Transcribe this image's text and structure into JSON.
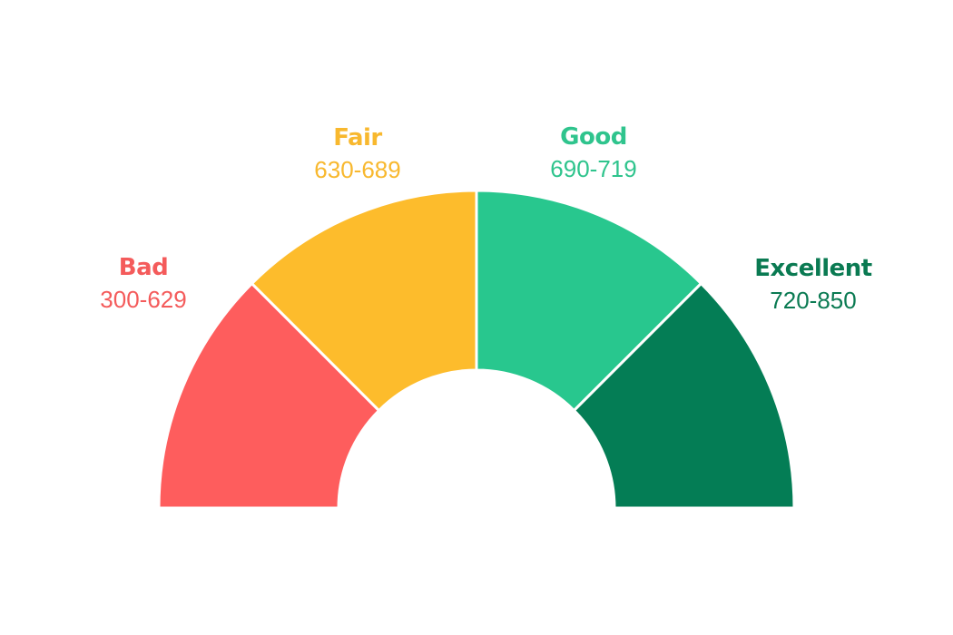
{
  "gauge": {
    "segments": [
      {
        "key": "bad",
        "title": "Bad",
        "range": "300-629",
        "color": "#FE5D5D"
      },
      {
        "key": "fair",
        "title": "Fair",
        "range": "630-689",
        "color": "#FDBC2C"
      },
      {
        "key": "good",
        "title": "Good",
        "range": "690-719",
        "color": "#28C78E"
      },
      {
        "key": "excellent",
        "title": "Excellent",
        "range": "720-850",
        "color": "#047D55"
      }
    ],
    "label_colors": {
      "bad": "#F45B5B",
      "fair": "#F8B82E",
      "good": "#2FC48D",
      "excellent": "#0A7A52"
    }
  }
}
